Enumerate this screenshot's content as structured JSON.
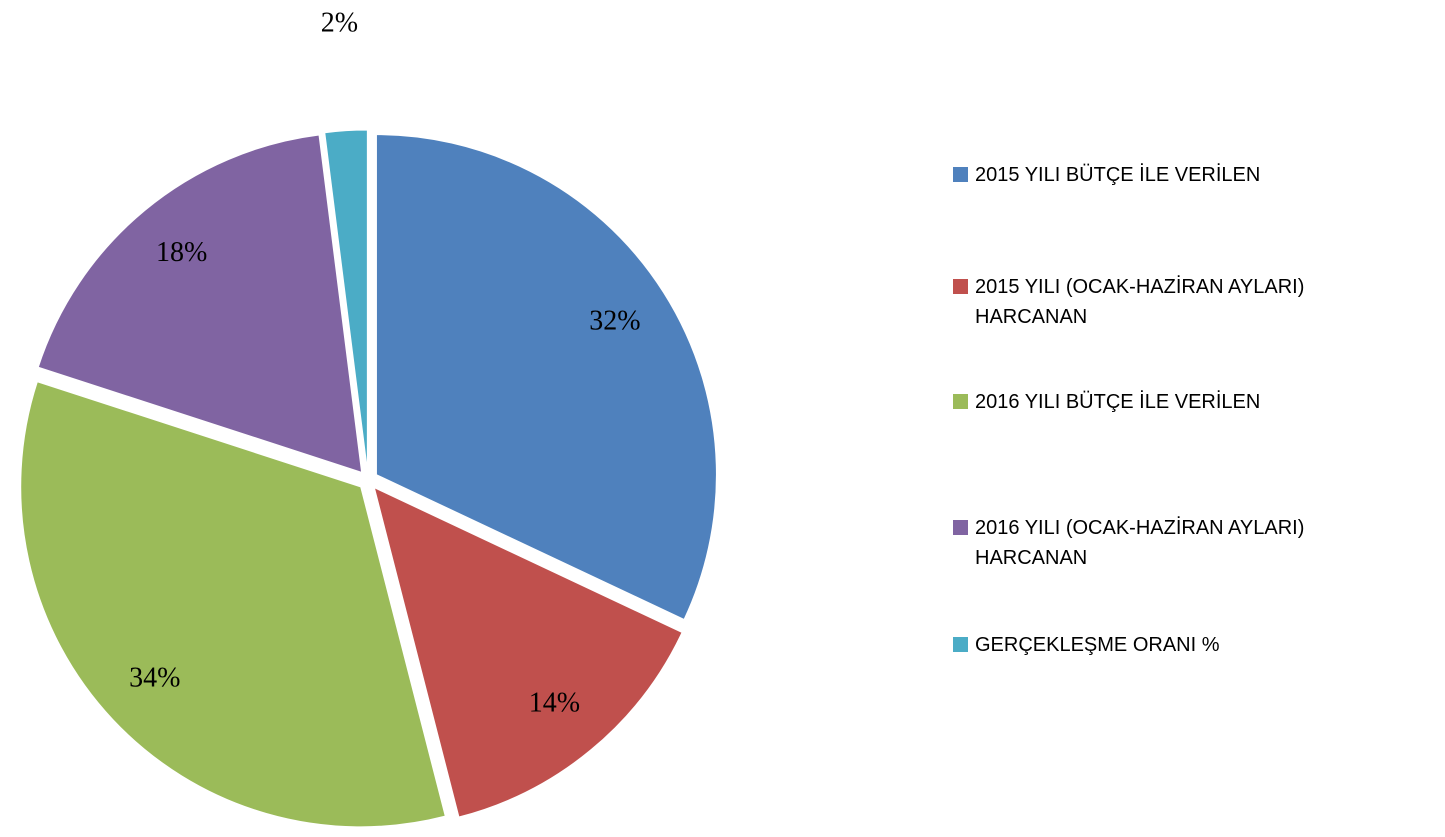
{
  "chart_data": {
    "type": "pie",
    "categories": [
      "2015 YILI BÜTÇE İLE VERİLEN",
      "2015 YILI (OCAK-HAZİRAN AYLARI) HARCANAN",
      "2016 YILI BÜTÇE İLE VERİLEN",
      "2016 YILI (OCAK-HAZİRAN AYLARI) HARCANAN",
      "GERÇEKLEŞME ORANI %"
    ],
    "values": [
      32,
      14,
      34,
      18,
      2
    ],
    "value_labels": [
      "32%",
      "14%",
      "34%",
      "18%",
      "2%"
    ],
    "colors": [
      "#4f81bd",
      "#c0504d",
      "#9bbb59",
      "#8064a2",
      "#4bacc6"
    ],
    "legend": "right"
  }
}
